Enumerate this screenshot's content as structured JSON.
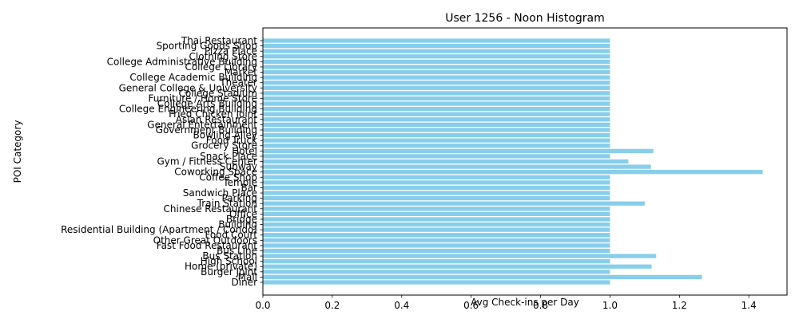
{
  "chart_data": {
    "type": "bar",
    "orientation": "horizontal",
    "title": "User 1256 - Noon Histogram",
    "xlabel": "Avg Check-ins per Day",
    "ylabel": "POI Category",
    "xlim": [
      0,
      1.51
    ],
    "x_ticks": [
      "0.0",
      "0.2",
      "0.4",
      "0.6",
      "0.8",
      "1.0",
      "1.2",
      "1.4"
    ],
    "bar_color": "#87ceeb",
    "categories": [
      "Diner",
      "Mall",
      "Burger Joint",
      "Home (private)",
      "High School",
      "Bus Station",
      "Bus Line",
      "Fast Food Restaurant",
      "Other Great Outdoors",
      "Food Court",
      "Residential Building (Apartment / Condo)",
      "Building",
      "Bridge",
      "Office",
      "Chinese Restaurant",
      "Train Station",
      "Parking",
      "Sandwich Place",
      "Bar",
      "Temple",
      "Coffee Shop",
      "Coworking Space",
      "Subway",
      "Gym / Fitness Center",
      "Snack Place",
      "Hotel",
      "Grocery Store",
      "Food Truck",
      "Bowling Alley",
      "Government Building",
      "General Entertainment",
      "Asian Restaurant",
      "Fried Chicken Joint",
      "College Engineering Building",
      "College Arts Building",
      "Furniture / Home Store",
      "College Stadium",
      "General College & University",
      "Theater",
      "College Academic Building",
      "Market",
      "College Library",
      "College Administrative Building",
      "Clothing Store",
      "Pizza Place",
      "Sporting Goods Shop",
      "Thai Restaurant"
    ],
    "values": [
      1.0,
      1.265,
      1.0,
      1.12,
      1.0,
      1.133,
      1.0,
      1.0,
      1.0,
      1.0,
      1.0,
      1.0,
      1.0,
      1.0,
      1.0,
      1.1,
      1.0,
      1.0,
      1.0,
      1.0,
      1.0,
      1.44,
      1.118,
      1.053,
      1.0,
      1.125,
      1.0,
      1.0,
      1.0,
      1.0,
      1.0,
      1.0,
      1.0,
      1.0,
      1.0,
      1.0,
      1.0,
      1.0,
      1.0,
      1.0,
      1.0,
      1.0,
      1.0,
      1.0,
      1.0,
      1.0,
      1.0
    ],
    "grid": false,
    "legend": "none"
  }
}
